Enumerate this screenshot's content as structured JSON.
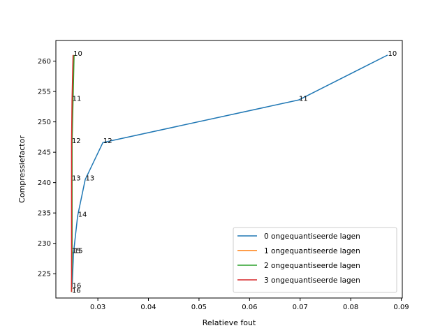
{
  "chart_data": {
    "type": "line",
    "title": "",
    "xlabel": "Relatieve fout",
    "ylabel": "Compressiefactor",
    "xlim": [
      0.0217,
      0.0902
    ],
    "ylim": [
      221.0,
      263.4
    ],
    "x_ticks": [
      0.02,
      0.03,
      0.04,
      0.05,
      0.06,
      0.07,
      0.08,
      0.09
    ],
    "x_tick_labels": [
      "0.02",
      "0.03",
      "0.04",
      "0.05",
      "0.06",
      "0.07",
      "0.08",
      "0.09"
    ],
    "y_ticks": [
      225,
      230,
      235,
      240,
      245,
      250,
      255,
      260
    ],
    "y_tick_labels": [
      "225",
      "230",
      "235",
      "240",
      "245",
      "250",
      "255",
      "260"
    ],
    "grid": false,
    "legend_position": "lower right",
    "series": [
      {
        "name": "0 ongequantiseerde lagen",
        "color": "#1f77b4",
        "points": [
          {
            "x": 0.0873,
            "y": 261.0,
            "label": "10"
          },
          {
            "x": 0.0697,
            "y": 253.6,
            "label": "11"
          },
          {
            "x": 0.031,
            "y": 246.6,
            "label": "12"
          },
          {
            "x": 0.0275,
            "y": 240.5,
            "label": "13"
          },
          {
            "x": 0.026,
            "y": 234.5,
            "label": "14"
          },
          {
            "x": 0.0252,
            "y": 228.5,
            "label": "15"
          },
          {
            "x": 0.0249,
            "y": 222.8,
            "label": "16"
          }
        ]
      },
      {
        "name": "1 ongequantiseerde lagen",
        "color": "#ff7f0e",
        "points": [
          {
            "x": 0.0252,
            "y": 261.0
          },
          {
            "x": 0.025,
            "y": 253.6
          },
          {
            "x": 0.0249,
            "y": 246.6
          },
          {
            "x": 0.0249,
            "y": 240.5
          },
          {
            "x": 0.0249,
            "y": 234.5
          },
          {
            "x": 0.0249,
            "y": 228.5
          },
          {
            "x": 0.0248,
            "y": 222.0
          }
        ]
      },
      {
        "name": "2 ongequantiseerde lagen",
        "color": "#2ca02c",
        "points": [
          {
            "x": 0.0253,
            "y": 261.0
          },
          {
            "x": 0.0251,
            "y": 253.6
          },
          {
            "x": 0.0249,
            "y": 246.6
          },
          {
            "x": 0.0249,
            "y": 240.5
          },
          {
            "x": 0.0249,
            "y": 234.5
          },
          {
            "x": 0.0249,
            "y": 228.5
          },
          {
            "x": 0.0248,
            "y": 222.0
          }
        ]
      },
      {
        "name": "3 ongequantiseerde lagen",
        "color": "#d62728",
        "points": [
          {
            "x": 0.0251,
            "y": 261.0,
            "label": "10"
          },
          {
            "x": 0.0249,
            "y": 253.6,
            "label": "11"
          },
          {
            "x": 0.0248,
            "y": 246.6,
            "label": "12"
          },
          {
            "x": 0.0248,
            "y": 240.5,
            "label": "13"
          },
          {
            "x": 0.0248,
            "y": 234.5
          },
          {
            "x": 0.0248,
            "y": 228.5,
            "label": "15"
          },
          {
            "x": 0.0248,
            "y": 222.0,
            "label": "16"
          }
        ]
      }
    ]
  }
}
